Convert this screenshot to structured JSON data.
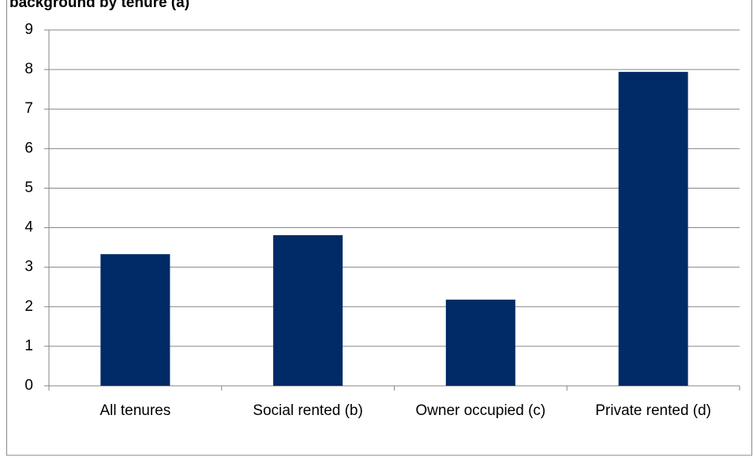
{
  "chart_data": {
    "type": "bar",
    "title": "background by tenure (a)",
    "categories": [
      "All tenures",
      "Social rented (b)",
      "Owner occupied (c)",
      "Private rented (d)"
    ],
    "values": [
      3.33,
      3.81,
      2.18,
      7.94
    ],
    "color": "#002b67",
    "ylim": [
      0,
      9
    ],
    "yticks": [
      0,
      1,
      2,
      3,
      4,
      5,
      6,
      7,
      8,
      9
    ],
    "grid": true
  }
}
